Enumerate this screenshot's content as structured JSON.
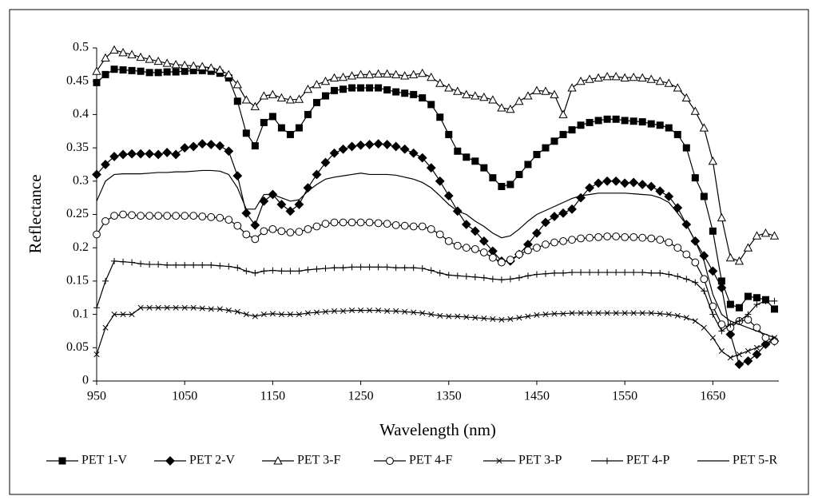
{
  "chart_data": {
    "type": "line",
    "xlabel": "Wavelength (nm)",
    "ylabel": "Reflectance",
    "xlim": [
      950,
      1725
    ],
    "ylim": [
      0,
      0.5
    ],
    "xticks": [
      950,
      1050,
      1150,
      1250,
      1350,
      1450,
      1550,
      1650
    ],
    "yticks": [
      0,
      0.05,
      0.1,
      0.15,
      0.2,
      0.25,
      0.3,
      0.35,
      0.4,
      0.45,
      0.5
    ],
    "legend": "bottom",
    "x": [
      950,
      960,
      970,
      980,
      990,
      1000,
      1010,
      1020,
      1030,
      1040,
      1050,
      1060,
      1070,
      1080,
      1090,
      1100,
      1110,
      1120,
      1130,
      1140,
      1150,
      1160,
      1170,
      1180,
      1190,
      1200,
      1210,
      1220,
      1230,
      1240,
      1250,
      1260,
      1270,
      1280,
      1290,
      1300,
      1310,
      1320,
      1330,
      1340,
      1350,
      1360,
      1370,
      1380,
      1390,
      1400,
      1410,
      1420,
      1430,
      1440,
      1450,
      1460,
      1470,
      1480,
      1490,
      1500,
      1510,
      1520,
      1530,
      1540,
      1550,
      1560,
      1570,
      1580,
      1590,
      1600,
      1610,
      1620,
      1630,
      1640,
      1650,
      1660,
      1670,
      1680,
      1690,
      1700,
      1710,
      1720
    ],
    "series": [
      {
        "name": "PET 1-V",
        "color": "#000000",
        "marker": "square",
        "marker_fill": "#000000",
        "values": [
          0.448,
          0.46,
          0.468,
          0.467,
          0.466,
          0.465,
          0.463,
          0.463,
          0.464,
          0.464,
          0.465,
          0.466,
          0.466,
          0.465,
          0.462,
          0.455,
          0.42,
          0.372,
          0.353,
          0.388,
          0.397,
          0.38,
          0.37,
          0.38,
          0.4,
          0.418,
          0.428,
          0.436,
          0.438,
          0.44,
          0.44,
          0.44,
          0.44,
          0.437,
          0.434,
          0.432,
          0.43,
          0.425,
          0.415,
          0.396,
          0.37,
          0.345,
          0.336,
          0.33,
          0.32,
          0.305,
          0.292,
          0.295,
          0.31,
          0.325,
          0.34,
          0.35,
          0.36,
          0.37,
          0.377,
          0.384,
          0.388,
          0.391,
          0.393,
          0.393,
          0.391,
          0.39,
          0.389,
          0.386,
          0.384,
          0.38,
          0.37,
          0.35,
          0.305,
          0.277,
          0.225,
          0.15,
          0.115,
          0.11,
          0.127,
          0.125,
          0.122,
          0.108
        ]
      },
      {
        "name": "PET 2-V",
        "color": "#000000",
        "marker": "diamond",
        "marker_fill": "#000000",
        "values": [
          0.31,
          0.325,
          0.337,
          0.34,
          0.341,
          0.341,
          0.341,
          0.34,
          0.343,
          0.34,
          0.35,
          0.352,
          0.356,
          0.355,
          0.353,
          0.345,
          0.308,
          0.252,
          0.234,
          0.27,
          0.28,
          0.265,
          0.255,
          0.265,
          0.29,
          0.31,
          0.328,
          0.342,
          0.348,
          0.352,
          0.354,
          0.355,
          0.356,
          0.355,
          0.352,
          0.348,
          0.342,
          0.335,
          0.32,
          0.3,
          0.278,
          0.255,
          0.235,
          0.225,
          0.21,
          0.195,
          0.18,
          0.18,
          0.19,
          0.205,
          0.222,
          0.238,
          0.247,
          0.252,
          0.258,
          0.275,
          0.29,
          0.297,
          0.3,
          0.3,
          0.297,
          0.298,
          0.295,
          0.292,
          0.285,
          0.277,
          0.26,
          0.235,
          0.21,
          0.188,
          0.165,
          0.14,
          0.07,
          0.025,
          0.03,
          0.04,
          0.055,
          0.06
        ]
      },
      {
        "name": "PET 3-F",
        "color": "#000000",
        "marker": "triangle",
        "marker_fill": "#ffffff",
        "values": [
          0.465,
          0.485,
          0.497,
          0.493,
          0.49,
          0.486,
          0.483,
          0.48,
          0.477,
          0.475,
          0.474,
          0.473,
          0.472,
          0.47,
          0.467,
          0.46,
          0.445,
          0.422,
          0.412,
          0.428,
          0.43,
          0.425,
          0.422,
          0.423,
          0.438,
          0.445,
          0.45,
          0.455,
          0.456,
          0.458,
          0.46,
          0.46,
          0.461,
          0.461,
          0.46,
          0.458,
          0.46,
          0.462,
          0.456,
          0.447,
          0.44,
          0.435,
          0.43,
          0.428,
          0.426,
          0.422,
          0.41,
          0.408,
          0.42,
          0.428,
          0.436,
          0.435,
          0.43,
          0.4,
          0.44,
          0.45,
          0.453,
          0.455,
          0.457,
          0.457,
          0.455,
          0.456,
          0.455,
          0.453,
          0.45,
          0.447,
          0.44,
          0.425,
          0.405,
          0.38,
          0.33,
          0.245,
          0.185,
          0.18,
          0.2,
          0.218,
          0.222,
          0.218
        ]
      },
      {
        "name": "PET 4-F",
        "color": "#000000",
        "marker": "circle",
        "marker_fill": "#ffffff",
        "values": [
          0.22,
          0.24,
          0.248,
          0.25,
          0.249,
          0.248,
          0.248,
          0.248,
          0.248,
          0.248,
          0.248,
          0.248,
          0.247,
          0.246,
          0.245,
          0.242,
          0.233,
          0.22,
          0.213,
          0.225,
          0.228,
          0.225,
          0.223,
          0.224,
          0.228,
          0.232,
          0.236,
          0.238,
          0.238,
          0.238,
          0.238,
          0.238,
          0.237,
          0.236,
          0.234,
          0.233,
          0.232,
          0.232,
          0.228,
          0.22,
          0.21,
          0.203,
          0.2,
          0.198,
          0.193,
          0.185,
          0.178,
          0.182,
          0.19,
          0.196,
          0.2,
          0.205,
          0.208,
          0.21,
          0.212,
          0.214,
          0.215,
          0.216,
          0.217,
          0.217,
          0.216,
          0.216,
          0.215,
          0.214,
          0.212,
          0.208,
          0.2,
          0.19,
          0.178,
          0.153,
          0.112,
          0.085,
          0.08,
          0.09,
          0.092,
          0.08,
          0.065,
          0.06
        ]
      },
      {
        "name": "PET 3-P",
        "color": "#000000",
        "marker": "x",
        "marker_fill": "#000000",
        "values": [
          0.04,
          0.08,
          0.1,
          0.1,
          0.1,
          0.11,
          0.11,
          0.11,
          0.11,
          0.11,
          0.11,
          0.11,
          0.109,
          0.108,
          0.108,
          0.106,
          0.104,
          0.1,
          0.097,
          0.1,
          0.101,
          0.1,
          0.1,
          0.1,
          0.102,
          0.103,
          0.104,
          0.105,
          0.105,
          0.106,
          0.106,
          0.106,
          0.106,
          0.105,
          0.105,
          0.104,
          0.103,
          0.102,
          0.1,
          0.098,
          0.097,
          0.097,
          0.096,
          0.095,
          0.094,
          0.093,
          0.092,
          0.093,
          0.095,
          0.097,
          0.099,
          0.1,
          0.101,
          0.101,
          0.102,
          0.102,
          0.102,
          0.102,
          0.102,
          0.102,
          0.102,
          0.102,
          0.102,
          0.102,
          0.101,
          0.1,
          0.098,
          0.095,
          0.09,
          0.08,
          0.065,
          0.045,
          0.035,
          0.04,
          0.045,
          0.05,
          0.055,
          0.065
        ]
      },
      {
        "name": "PET 4-P",
        "color": "#000000",
        "marker": "plus",
        "marker_fill": "#000000",
        "values": [
          0.11,
          0.15,
          0.18,
          0.179,
          0.178,
          0.176,
          0.175,
          0.175,
          0.174,
          0.174,
          0.174,
          0.174,
          0.174,
          0.174,
          0.173,
          0.172,
          0.17,
          0.165,
          0.162,
          0.165,
          0.166,
          0.165,
          0.165,
          0.165,
          0.167,
          0.168,
          0.169,
          0.17,
          0.17,
          0.171,
          0.171,
          0.171,
          0.171,
          0.171,
          0.17,
          0.17,
          0.17,
          0.169,
          0.166,
          0.162,
          0.159,
          0.158,
          0.157,
          0.156,
          0.155,
          0.153,
          0.152,
          0.153,
          0.155,
          0.158,
          0.16,
          0.161,
          0.162,
          0.162,
          0.163,
          0.163,
          0.163,
          0.163,
          0.163,
          0.163,
          0.163,
          0.163,
          0.163,
          0.162,
          0.162,
          0.16,
          0.157,
          0.153,
          0.148,
          0.135,
          0.1,
          0.075,
          0.085,
          0.09,
          0.1,
          0.115,
          0.12,
          0.12
        ]
      },
      {
        "name": "PET 5-R",
        "color": "#000000",
        "marker": "none",
        "marker_fill": "#000000",
        "values": [
          0.27,
          0.3,
          0.31,
          0.311,
          0.311,
          0.311,
          0.312,
          0.313,
          0.313,
          0.314,
          0.314,
          0.315,
          0.316,
          0.316,
          0.315,
          0.31,
          0.29,
          0.258,
          0.258,
          0.28,
          0.28,
          0.275,
          0.27,
          0.272,
          0.285,
          0.295,
          0.303,
          0.306,
          0.308,
          0.31,
          0.312,
          0.31,
          0.31,
          0.31,
          0.309,
          0.306,
          0.303,
          0.298,
          0.29,
          0.278,
          0.265,
          0.255,
          0.25,
          0.24,
          0.232,
          0.222,
          0.215,
          0.218,
          0.228,
          0.24,
          0.25,
          0.256,
          0.262,
          0.268,
          0.274,
          0.278,
          0.28,
          0.282,
          0.282,
          0.282,
          0.282,
          0.281,
          0.28,
          0.279,
          0.275,
          0.268,
          0.252,
          0.235,
          0.21,
          0.18,
          0.13,
          0.1,
          0.09,
          0.085,
          0.08,
          0.075,
          0.07,
          0.065
        ]
      }
    ]
  }
}
